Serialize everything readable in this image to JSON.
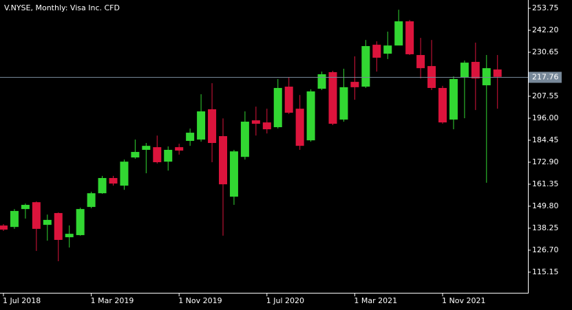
{
  "chart_data": {
    "type": "candlestick",
    "title": "V.NYSE, Monthly:  Visa Inc. CFD",
    "categories": [
      "1 Jul 2018",
      null,
      null,
      null,
      null,
      null,
      null,
      null,
      "1 Mar 2019",
      null,
      null,
      null,
      null,
      null,
      null,
      null,
      "1 Nov 2019",
      null,
      null,
      null,
      null,
      null,
      null,
      null,
      "1 Jul 2020",
      null,
      null,
      null,
      null,
      null,
      null,
      null,
      "1 Mar 2021",
      null,
      null,
      null,
      null,
      null,
      null,
      null,
      "1 Nov 2021",
      null,
      null,
      null,
      null,
      null
    ],
    "open": [
      139.65,
      138.9,
      148.3,
      151.9,
      140.0,
      146.2,
      133.5,
      134.6,
      149.4,
      156.6,
      164.6,
      160.6,
      175.4,
      179.4,
      180.8,
      173.2,
      180.8,
      184.1,
      184.8,
      200.7,
      186.6,
      154.8,
      175.7,
      194.9,
      193.8,
      191.3,
      212.6,
      201.0,
      184.4,
      211.5,
      220.2,
      195.3,
      215.1,
      212.6,
      234.6,
      229.9,
      234.2,
      246.9,
      229.2,
      223.4,
      211.9,
      195.3,
      217.3,
      225.6,
      213.3,
      221.6
    ],
    "high": [
      140.4,
      148.3,
      151.2,
      152.3,
      145.4,
      146.5,
      139.7,
      149.0,
      157.4,
      165.7,
      165.7,
      174.3,
      184.8,
      183.0,
      186.9,
      181.2,
      182.6,
      190.6,
      208.6,
      214.4,
      195.9,
      179.4,
      199.6,
      202.1,
      201.0,
      216.6,
      217.3,
      208.2,
      211.2,
      220.5,
      220.9,
      222.0,
      228.5,
      237.1,
      236.4,
      241.5,
      253.0,
      247.6,
      238.2,
      237.1,
      213.0,
      218.0,
      226.3,
      235.7,
      229.2,
      229.2
    ],
    "low": [
      136.8,
      137.9,
      143.3,
      126.3,
      131.7,
      120.9,
      128.1,
      134.3,
      148.7,
      156.3,
      160.6,
      158.4,
      174.7,
      167.1,
      172.2,
      168.5,
      176.9,
      181.5,
      183.7,
      172.9,
      134.3,
      150.5,
      174.3,
      186.9,
      188.0,
      190.6,
      198.2,
      179.4,
      183.7,
      210.8,
      192.4,
      194.2,
      205.7,
      211.9,
      220.5,
      227.1,
      234.6,
      229.2,
      216.9,
      210.8,
      193.1,
      190.2,
      196.0,
      200.3,
      162.1,
      201.0
    ],
    "close": [
      137.5,
      147.3,
      150.5,
      137.9,
      142.6,
      132.1,
      135.3,
      148.3,
      156.6,
      164.6,
      161.7,
      173.2,
      178.3,
      181.5,
      172.9,
      179.4,
      179.0,
      188.4,
      199.6,
      183.0,
      161.3,
      178.6,
      194.2,
      193.1,
      190.2,
      211.9,
      198.9,
      181.5,
      210.1,
      219.1,
      193.1,
      212.3,
      212.3,
      233.9,
      227.8,
      234.2,
      246.9,
      229.6,
      222.3,
      211.9,
      193.8,
      216.6,
      225.2,
      216.9,
      222.3,
      217.76
    ],
    "up_color": "#32d732",
    "down_color": "#dc143c",
    "last_price": 217.76,
    "ylim": [
      104.3,
      258.1
    ],
    "yticks": [
      115.15,
      {
        "value": 126.7,
        "label": "126.70"
      },
      138.25,
      {
        "value": 149.8,
        "label": "149.80"
      },
      161.35,
      {
        "value": 172.9,
        "label": "172.90"
      },
      184.45,
      {
        "value": 196,
        "label": "196.00"
      },
      207.55,
      230.65,
      {
        "value": 242.2,
        "label": "242.20"
      },
      253.75
    ]
  }
}
